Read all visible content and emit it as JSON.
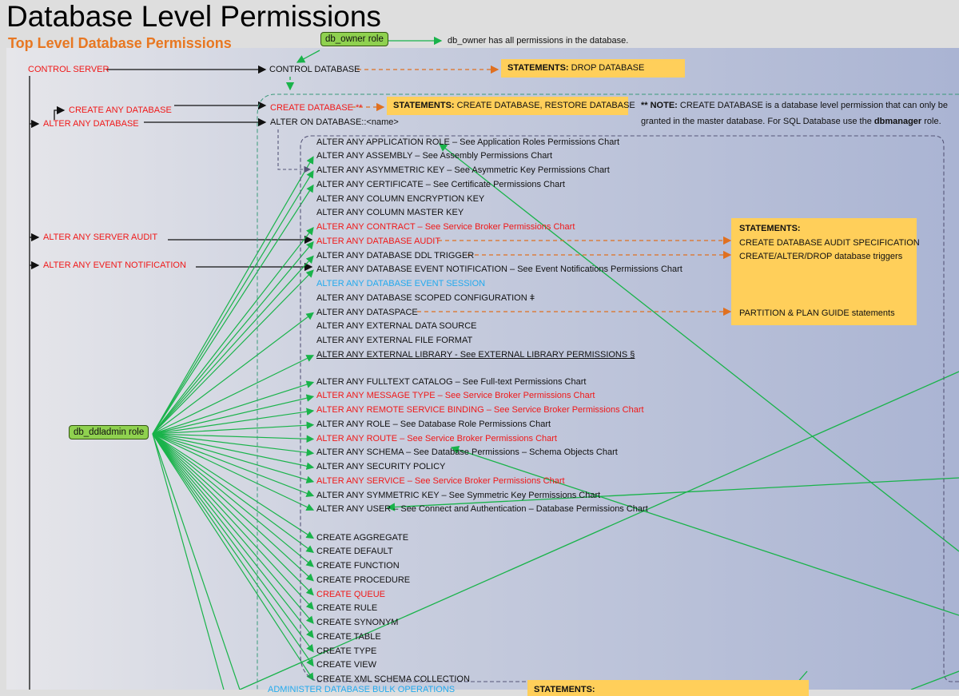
{
  "title": "Database Level Permissions",
  "subtitle": "Top Level Database Permissions",
  "roles": {
    "db_owner": "db_owner role",
    "db_owner_note": "db_owner has all permissions in the database.",
    "db_ddladmin": "db_ddladmin role"
  },
  "server_perms": {
    "control_server": "CONTROL SERVER",
    "create_any_database": "CREATE ANY DATABASE",
    "alter_any_database": "ALTER ANY DATABASE",
    "alter_any_server_audit": "ALTER ANY SERVER AUDIT",
    "alter_any_event_notification": "ALTER ANY EVENT NOTIFICATION"
  },
  "db_perms": {
    "control_database": "CONTROL DATABASE",
    "create_database": "CREATE DATABASE **",
    "alter_on_database": "ALTER ON DATABASE::<name>"
  },
  "statements": {
    "drop": {
      "label": "STATEMENTS:",
      "text": " DROP DATABASE"
    },
    "create": {
      "label": "STATEMENTS:",
      "text": " CREATE DATABASE, RESTORE DATABASE"
    },
    "audit": {
      "label": "STATEMENTS:",
      "lines": [
        "CREATE DATABASE AUDIT SPECIFICATION",
        "CREATE/ALTER/DROP database triggers",
        "PARTITION & PLAN GUIDE statements"
      ]
    },
    "bottom": {
      "label": "STATEMENTS:"
    }
  },
  "note": {
    "prefix": "** NOTE:",
    "line1": " CREATE DATABASE is a database level permission that can only be",
    "line2a": "granted in the master database. For SQL Database use the ",
    "bold": "dbmanager",
    "line2b": " role."
  },
  "alter_items": [
    {
      "text": "ALTER ANY APPLICATION ROLE – See Application Roles Permissions Chart",
      "color": "black"
    },
    {
      "text": "ALTER ANY ASSEMBLY – See Assembly Permissions Chart",
      "color": "black"
    },
    {
      "text": "ALTER ANY ASYMMETRIC KEY – See Asymmetric Key Permissions Chart",
      "color": "black"
    },
    {
      "text": "ALTER ANY CERTIFICATE – See Certificate Permissions Chart",
      "color": "black"
    },
    {
      "text": "ALTER ANY COLUMN ENCRYPTION KEY",
      "color": "black"
    },
    {
      "text": "ALTER ANY COLUMN MASTER KEY",
      "color": "black"
    },
    {
      "text": "ALTER ANY CONTRACT – See Service Broker Permissions Chart",
      "color": "red"
    },
    {
      "text": "ALTER ANY DATABASE AUDIT",
      "color": "red"
    },
    {
      "text": "ALTER ANY DATABASE DDL TRIGGER",
      "color": "black"
    },
    {
      "text": "ALTER ANY DATABASE EVENT NOTIFICATION – See Event Notifications Permissions Chart",
      "color": "black"
    },
    {
      "text": "ALTER ANY DATABASE EVENT SESSION",
      "color": "cyan"
    },
    {
      "text": "ALTER ANY DATABASE SCOPED CONFIGURATION ǂ",
      "color": "black"
    },
    {
      "text": "ALTER ANY DATASPACE",
      "color": "black"
    },
    {
      "text": "ALTER ANY EXTERNAL DATA SOURCE",
      "color": "black"
    },
    {
      "text": "ALTER ANY EXTERNAL FILE FORMAT",
      "color": "black"
    },
    {
      "text": "ALTER ANY EXTERNAL LIBRARY - See EXTERNAL LIBRARY PERMISSIONS §",
      "color": "black",
      "underline": true
    }
  ],
  "alter_items2": [
    {
      "text": "ALTER ANY FULLTEXT CATALOG – See Full-text Permissions Chart",
      "color": "black"
    },
    {
      "text": "ALTER ANY MESSAGE TYPE – See Service Broker Permissions Chart",
      "color": "red"
    },
    {
      "text": "ALTER ANY REMOTE SERVICE BINDING – See Service Broker Permissions Chart",
      "color": "red"
    },
    {
      "text": "ALTER ANY ROLE – See Database Role Permissions Chart",
      "color": "black"
    },
    {
      "text": "ALTER ANY ROUTE – See Service Broker Permissions Chart",
      "color": "red"
    },
    {
      "text": "ALTER ANY SCHEMA – See Database Permissions – Schema Objects Chart",
      "color": "black"
    },
    {
      "text": "ALTER ANY SECURITY POLICY",
      "color": "black"
    },
    {
      "text": "ALTER ANY SERVICE – See Service Broker Permissions Chart",
      "color": "red"
    },
    {
      "text": "ALTER ANY SYMMETRIC KEY – See Symmetric Key Permissions Chart",
      "color": "black"
    },
    {
      "text": "ALTER ANY USER – See Connect and Authentication – Database Permissions Chart",
      "color": "black"
    }
  ],
  "create_items": [
    {
      "text": "CREATE AGGREGATE",
      "color": "black"
    },
    {
      "text": "CREATE DEFAULT",
      "color": "black"
    },
    {
      "text": "CREATE FUNCTION",
      "color": "black"
    },
    {
      "text": "CREATE PROCEDURE",
      "color": "black"
    },
    {
      "text": "CREATE QUEUE",
      "color": "red"
    },
    {
      "text": "CREATE RULE",
      "color": "black"
    },
    {
      "text": "CREATE SYNONYM",
      "color": "black"
    },
    {
      "text": "CREATE TABLE",
      "color": "black"
    },
    {
      "text": "CREATE TYPE",
      "color": "black"
    },
    {
      "text": "CREATE VIEW",
      "color": "black"
    },
    {
      "text": "CREATE XML SCHEMA COLLECTION",
      "color": "black"
    }
  ],
  "administer_bulk": "ADMINISTER DATABASE BULK OPERATIONS",
  "colors": {
    "permission_red": "#f01818",
    "new_cyan": "#22aaee",
    "statements_box": "#ffcf5a",
    "role_green": "#8fd14f",
    "arrow_green": "#19b34a",
    "arrow_orange": "#e07020",
    "title_orange": "#e87722"
  }
}
